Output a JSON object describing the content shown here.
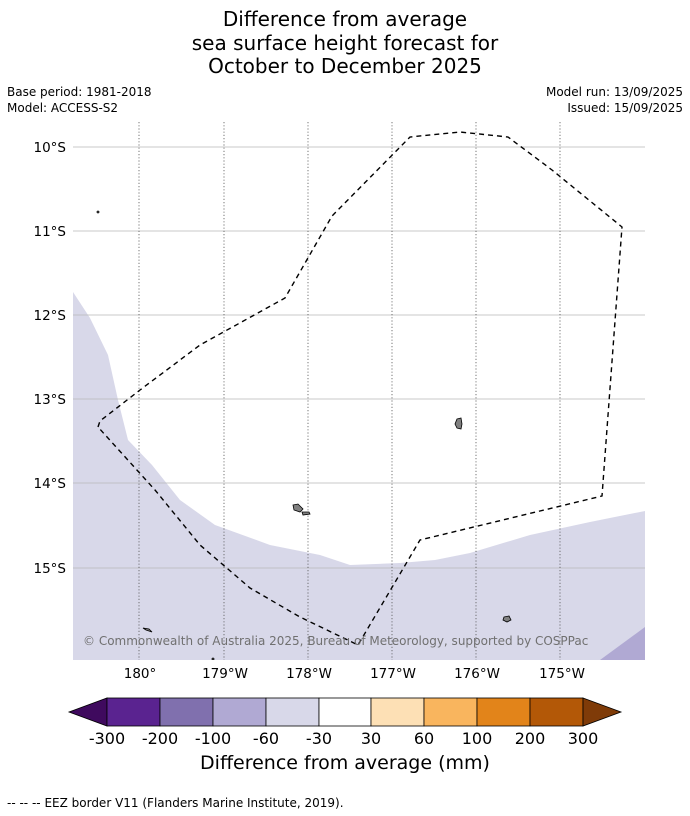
{
  "title": {
    "line1": "Difference from average",
    "line2": "sea surface height forecast for",
    "line3": "October to December 2025"
  },
  "meta": {
    "base_period": "Base period: 1981-2018",
    "model": "Model: ACCESS-S2",
    "model_run": "Model run: 13/09/2025",
    "issued": "Issued: 15/09/2025"
  },
  "map": {
    "lat_labels": [
      "10°S",
      "11°S",
      "12°S",
      "13°S",
      "14°S",
      "15°S"
    ],
    "lon_labels": [
      "180°",
      "179°W",
      "178°W",
      "177°W",
      "176°W",
      "175°W"
    ],
    "attribution": "© Commonwealth of Australia 2025, Bureau of Meteorology, supported by COSPPac",
    "colors": {
      "anomaly_neg_light": "#d8d8e9",
      "anomaly_neg_medium": "#b0a9d3",
      "land": "#808080",
      "eez_border": "#000000"
    }
  },
  "colorbar": {
    "tick_labels": [
      "-300",
      "-200",
      "-100",
      "-60",
      "-30",
      "30",
      "60",
      "100",
      "200",
      "300"
    ],
    "colors": [
      "#3f0a5e",
      "#5a2390",
      "#8070ae",
      "#b0a9d3",
      "#d8d8e9",
      "#ffffff",
      "#fde0b5",
      "#f9b55e",
      "#e2841a",
      "#b35807",
      "#7f3b08"
    ],
    "title": "Difference from average (mm)"
  },
  "footer": {
    "legend_symbol": "--  --  --",
    "legend_text": "EEZ border V11 (Flanders Marine Institute, 2019)."
  }
}
